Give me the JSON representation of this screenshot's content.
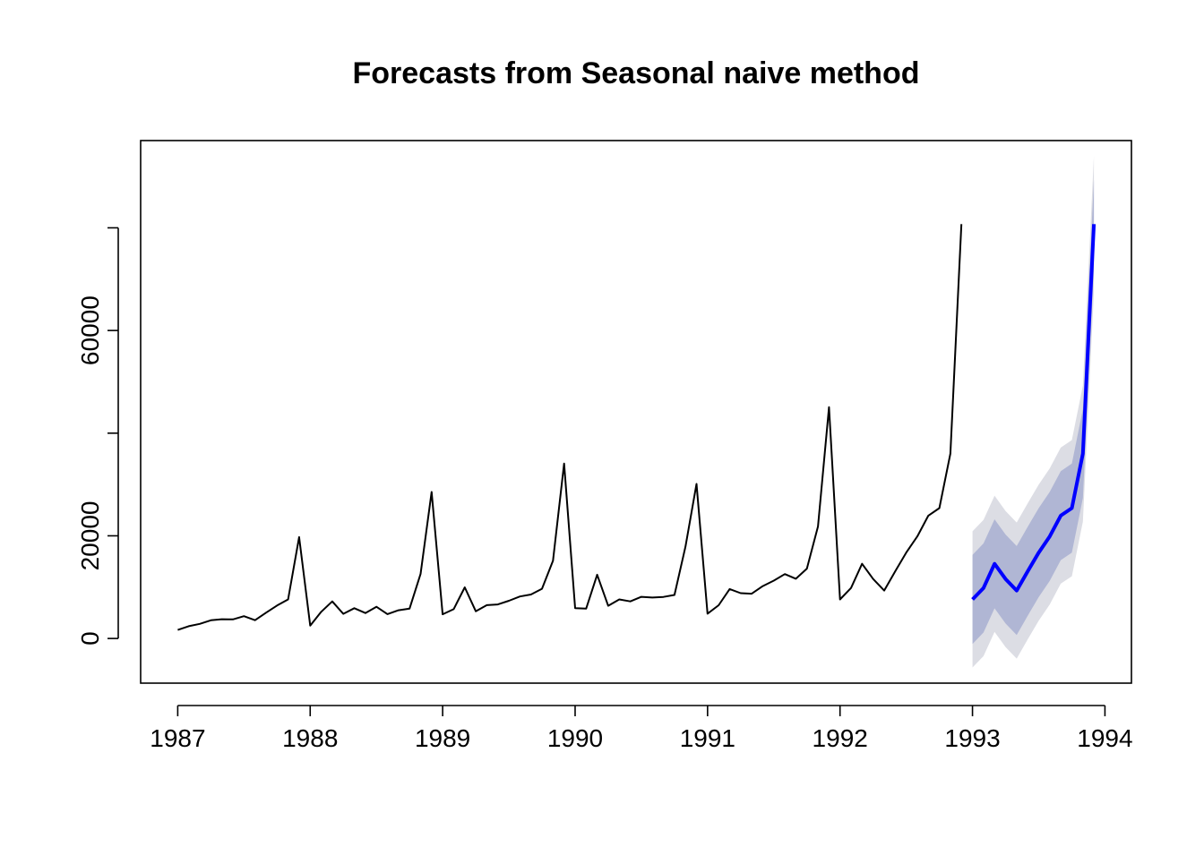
{
  "chart_data": {
    "type": "line",
    "title": "Forecasts from Seasonal naive method",
    "xlabel": "",
    "ylabel": "",
    "xlim": [
      1986.72,
      1994.2
    ],
    "ylim": [
      -8700,
      97000
    ],
    "x_ticks": [
      "1987",
      "1988",
      "1989",
      "1990",
      "1991",
      "1992",
      "1993",
      "1994"
    ],
    "y_ticks": [
      "0",
      "20000",
      "60000"
    ],
    "legend": "none",
    "grid": false,
    "colors": {
      "history": "#000000",
      "forecast": "#0000ff",
      "band80": "#b0b6d4",
      "band95": "#dcdde4"
    },
    "series": [
      {
        "start": 1987.0,
        "frequency": 12,
        "values": [
          1665,
          2397,
          2841,
          3547,
          3753,
          3715,
          4350,
          3566,
          5022,
          6423,
          7600,
          19756,
          2499,
          5198,
          7225,
          4806,
          5900,
          4951,
          6179,
          4752,
          5496,
          5836,
          12600,
          28541,
          4717,
          5702,
          9957,
          5304,
          6492,
          6631,
          7349,
          8176,
          8573,
          9690,
          15151,
          34061,
          5921,
          5814,
          12421,
          6369,
          7609,
          7224,
          8121,
          7979,
          8093,
          8476,
          17914,
          30114,
          4827,
          6470,
          9638,
          8821,
          8722,
          10209,
          11276,
          12552,
          11637,
          13606,
          21822,
          45060,
          7615,
          9849,
          14558,
          11587,
          9332,
          13082,
          16732,
          19889,
          23933,
          25391,
          36024,
          80721
        ]
      },
      {
        "name": "forecast",
        "start": 1993.0,
        "frequency": 12,
        "values": [
          7615,
          9849,
          14558,
          11587,
          9332,
          13082,
          16732,
          19889,
          23933,
          25391,
          36024,
          80721
        ],
        "lo80": [
          -1055,
          1180,
          5888,
          2917,
          662,
          4412,
          8062,
          11219,
          15263,
          16721,
          27354,
          72051
        ],
        "hi80": [
          16285,
          18519,
          23228,
          20257,
          18002,
          21752,
          25402,
          28559,
          32603,
          34061,
          44694,
          89391
        ],
        "lo95": [
          -5646,
          -3412,
          1297,
          -1674,
          -3929,
          -179,
          3471,
          6628,
          10672,
          12130,
          22763,
          67460
        ],
        "hi95": [
          20876,
          23110,
          27819,
          24848,
          22593,
          26343,
          29993,
          33150,
          37194,
          38652,
          49285,
          93982
        ]
      }
    ]
  }
}
